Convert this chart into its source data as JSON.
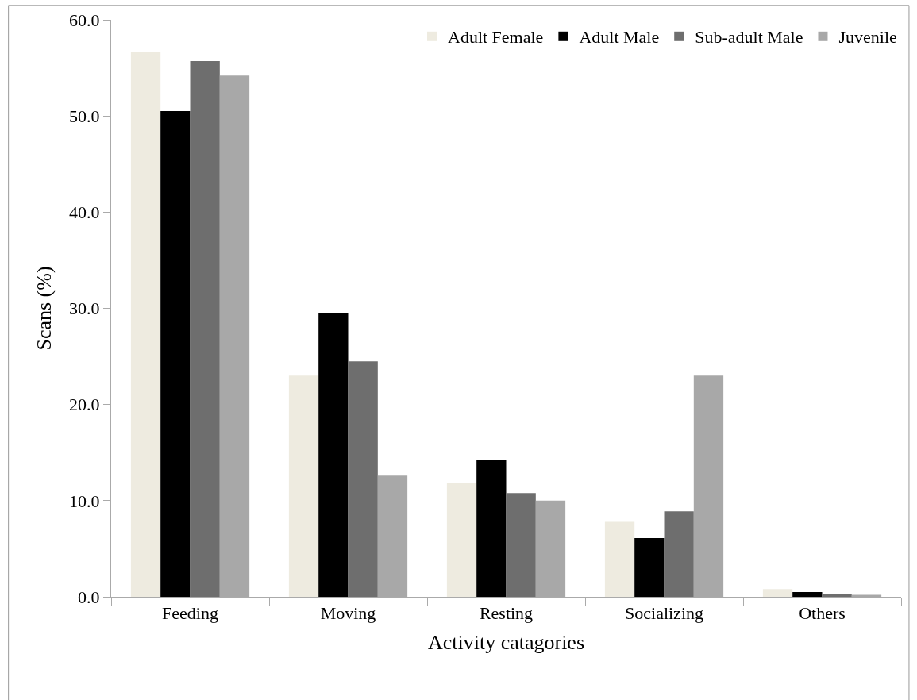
{
  "chart_data": {
    "type": "bar",
    "xlabel": "Activity catagories",
    "ylabel": "Scans (%)",
    "categories": [
      "Feeding",
      "Moving",
      "Resting",
      "Socializing",
      "Others"
    ],
    "series": [
      {
        "name": "Adult Female",
        "color": "#eeebe0",
        "values": [
          56.7,
          23.0,
          11.8,
          7.8,
          0.8
        ]
      },
      {
        "name": "Adult Male",
        "color": "#000000",
        "values": [
          50.5,
          29.5,
          14.2,
          6.1,
          0.5
        ]
      },
      {
        "name": "Sub-adult Male",
        "color": "#6e6e6e",
        "values": [
          55.7,
          24.5,
          10.8,
          8.9,
          0.3
        ]
      },
      {
        "name": "Juvenile",
        "color": "#a8a8a8",
        "values": [
          54.2,
          12.6,
          10.0,
          23.0,
          0.2
        ]
      }
    ],
    "ylim": [
      0,
      60
    ],
    "yticks": [
      {
        "value": 0,
        "label": "0.0"
      },
      {
        "value": 10,
        "label": "10.0"
      },
      {
        "value": 20,
        "label": "20.0"
      },
      {
        "value": 30,
        "label": "30.0"
      },
      {
        "value": 40,
        "label": "40.0"
      },
      {
        "value": 50,
        "label": "50.0"
      },
      {
        "value": 60,
        "label": "60.0"
      }
    ],
    "legend": "top right"
  }
}
